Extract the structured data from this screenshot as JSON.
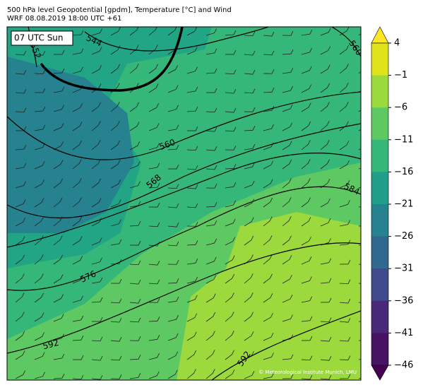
{
  "header": {
    "line1": "500 hPa level Geopotential [gpdm], Temperature [°C] and Wind",
    "line2": "WRF 08.08.2019 18:00 UTC +61"
  },
  "map": {
    "time_label": "07 UTC Sun",
    "contour_labels": [
      "552",
      "544",
      "560",
      "560",
      "568",
      "584",
      "576",
      "592",
      "592"
    ],
    "credit": "© Meteorological Institute Munich, LMU"
  },
  "colorbar": {
    "ticks": [
      4,
      {
        "value": -1,
        "label": "−1"
      },
      {
        "value": -6,
        "label": "−6"
      },
      {
        "value": -11,
        "label": "−11"
      },
      {
        "value": -16,
        "label": "−16"
      },
      {
        "value": -21,
        "label": "−21"
      },
      {
        "value": -26,
        "label": "−26"
      },
      {
        "value": -31,
        "label": "−31"
      },
      {
        "value": -36,
        "label": "−36"
      },
      {
        "value": -41,
        "label": "−41"
      },
      {
        "value": -46,
        "label": "−46"
      }
    ]
  }
}
